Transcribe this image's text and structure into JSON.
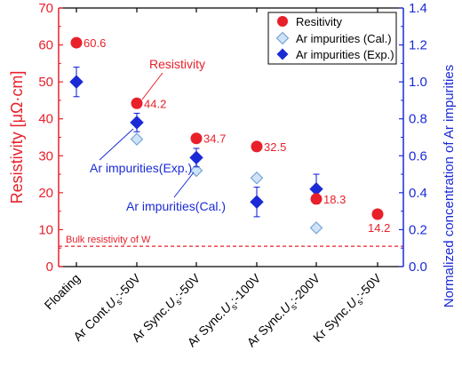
{
  "chart_data": {
    "type": "scatter",
    "categories": [
      "Floating",
      "Ar Cont.U_s:-50V",
      "Ar Sync.U_s:-50V",
      "Ar Sync.U_s:-100V",
      "Ar Sync.U_s:-200V",
      "Kr Sync.U_s:-50V"
    ],
    "category_labels": [
      {
        "pre": "Floating",
        "sym": "",
        "sub": "",
        "post": ""
      },
      {
        "pre": "Ar Cont.",
        "sym": "U",
        "sub": "s",
        "post": ":-50V"
      },
      {
        "pre": "Ar Sync.",
        "sym": "U",
        "sub": "s",
        "post": ":-50V"
      },
      {
        "pre": "Ar Sync.",
        "sym": "U",
        "sub": "s",
        "post": ":-100V"
      },
      {
        "pre": "Ar Sync.",
        "sym": "U",
        "sub": "s",
        "post": ":-200V"
      },
      {
        "pre": "Kr Sync.",
        "sym": "U",
        "sub": "s",
        "post": ":-50V"
      }
    ],
    "y_left": {
      "label": "Resistivity [μΩ·cm]",
      "lim": [
        0,
        70
      ],
      "ticks": [
        0,
        10,
        20,
        30,
        40,
        50,
        60,
        70
      ],
      "color": "#e8202a"
    },
    "y_right": {
      "label": "Normalized concentration of Ar impurities",
      "lim": [
        0,
        1.4
      ],
      "ticks": [
        "0.0",
        "0.2",
        "0.4",
        "0.6",
        "0.8",
        "1.0",
        "1.2",
        "1.4"
      ],
      "color": "#1a2bd6"
    },
    "series": [
      {
        "name": "Resitivity",
        "axis": "left",
        "marker": "circle",
        "color": "#e8202a",
        "values": [
          60.6,
          44.2,
          34.7,
          32.5,
          18.3,
          14.2
        ],
        "labels": [
          "60.6",
          "44.2",
          "34.7",
          "32.5",
          "18.3",
          "14.2"
        ]
      },
      {
        "name": "Ar impurities (Cal.)",
        "axis": "right",
        "marker": "diamond-open",
        "color": "#9fc8f0",
        "values": [
          null,
          0.69,
          0.52,
          0.48,
          0.21,
          null
        ]
      },
      {
        "name": "Ar impurities (Exp.)",
        "axis": "right",
        "marker": "diamond",
        "color": "#1a2bd6",
        "values": [
          1.0,
          0.78,
          0.59,
          0.35,
          0.42,
          null
        ],
        "error": [
          0.08,
          0.05,
          0.05,
          0.08,
          0.08,
          null
        ]
      }
    ],
    "reference_line": {
      "label": "Bulk resistivity of W",
      "value": 5.5,
      "axis": "left",
      "color": "#e8202a"
    },
    "annotations": [
      {
        "text": "Resistivity",
        "color": "#e8202a"
      },
      {
        "text": "Ar impurities(Exp.)",
        "color": "#1a2bd6"
      },
      {
        "text": "Ar impurities(Cal.)",
        "color": "#1a2bd6"
      }
    ],
    "legend": {
      "position": "top-right"
    },
    "grid": false
  }
}
